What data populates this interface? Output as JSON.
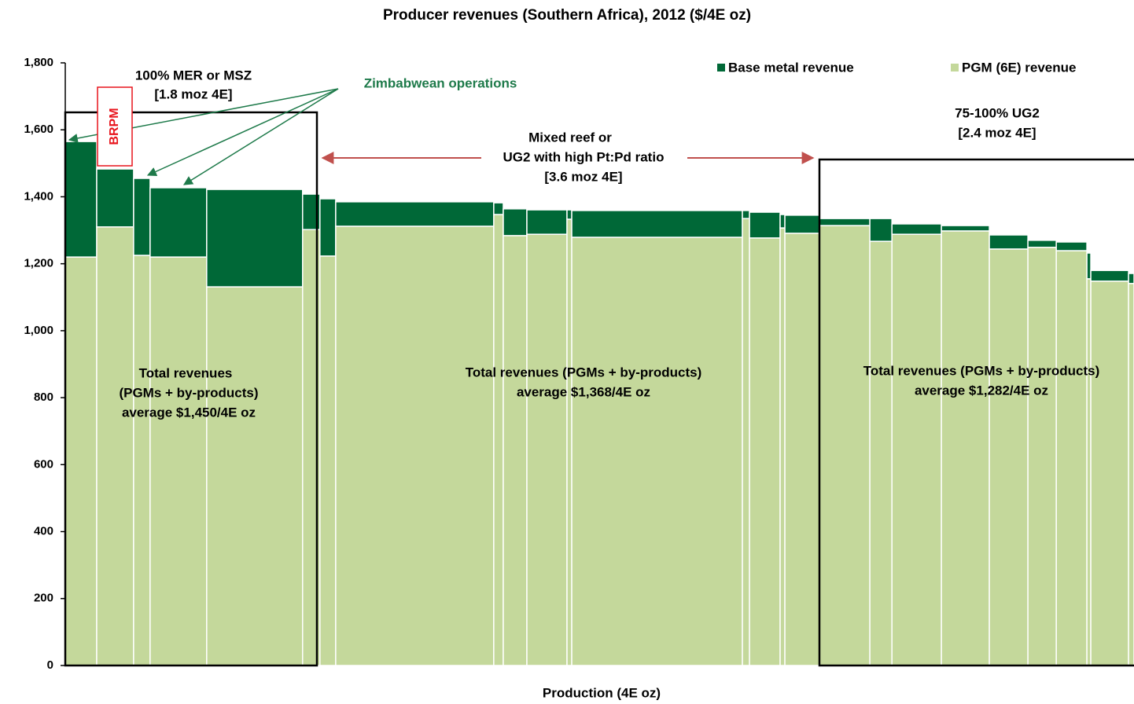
{
  "chart_data": {
    "type": "bar",
    "stacked": true,
    "variable_width": true,
    "title": "Producer revenues (Southern Africa), 2012 ($/4E oz)",
    "x_label": "Production (4E oz)",
    "widths": [
      225,
      264,
      118,
      405,
      686,
      124,
      113,
      1131,
      68,
      169,
      287,
      34,
      1221,
      51,
      219,
      34,
      248,
      360,
      158,
      354,
      343,
      276,
      203,
      219,
      28,
      270,
      39
    ],
    "xlim": [
      0,
      7647
    ],
    "series": [
      {
        "name": "PGM (6E) revenue",
        "color": "#c4d89b",
        "values": [
          1220,
          1310,
          1225,
          1220,
          1131,
          1302,
          1223,
          1312,
          1347,
          1284,
          1288,
          1333,
          1279,
          1335,
          1277,
          1307,
          1291,
          1314,
          1267,
          1288,
          1298,
          1244,
          1249,
          1239,
          1155,
          1148,
          1141
        ]
      },
      {
        "name": "Base metal revenue",
        "color": "#006837",
        "values": [
          345,
          173,
          230,
          207,
          291,
          106,
          171,
          73,
          35,
          80,
          73,
          28,
          80,
          24,
          77,
          40,
          54,
          21,
          68,
          31,
          16,
          42,
          21,
          26,
          77,
          32,
          30
        ]
      }
    ],
    "ylim": [
      0,
      1800
    ],
    "yticks": [
      0,
      200,
      400,
      600,
      800,
      {
        "value": 1000,
        "label": "1,000"
      },
      {
        "value": 1200,
        "label": "1,200"
      },
      {
        "value": 1400,
        "label": "1,400"
      },
      {
        "value": 1600,
        "label": "1,600"
      },
      {
        "value": 1800,
        "label": "1,800"
      }
    ],
    "legend": "top-right",
    "annotations": [
      "100% MER or MSZ",
      "[1.8 moz 4E]",
      "Zimbabwean operations",
      "BRPM",
      "Mixed reef or",
      "UG2 with high Pt:Pd ratio",
      "[3.6 moz 4E]",
      "75-100% UG2",
      "[2.4 moz 4E]",
      "Total revenues",
      "(PGMs + by-products)",
      "average $1,450/4E oz",
      "Total revenues (PGMs + by-products)",
      "average $1,368/4E oz",
      "Total revenues (PGMs + by-products)",
      "average $1,282/4E oz"
    ]
  }
}
